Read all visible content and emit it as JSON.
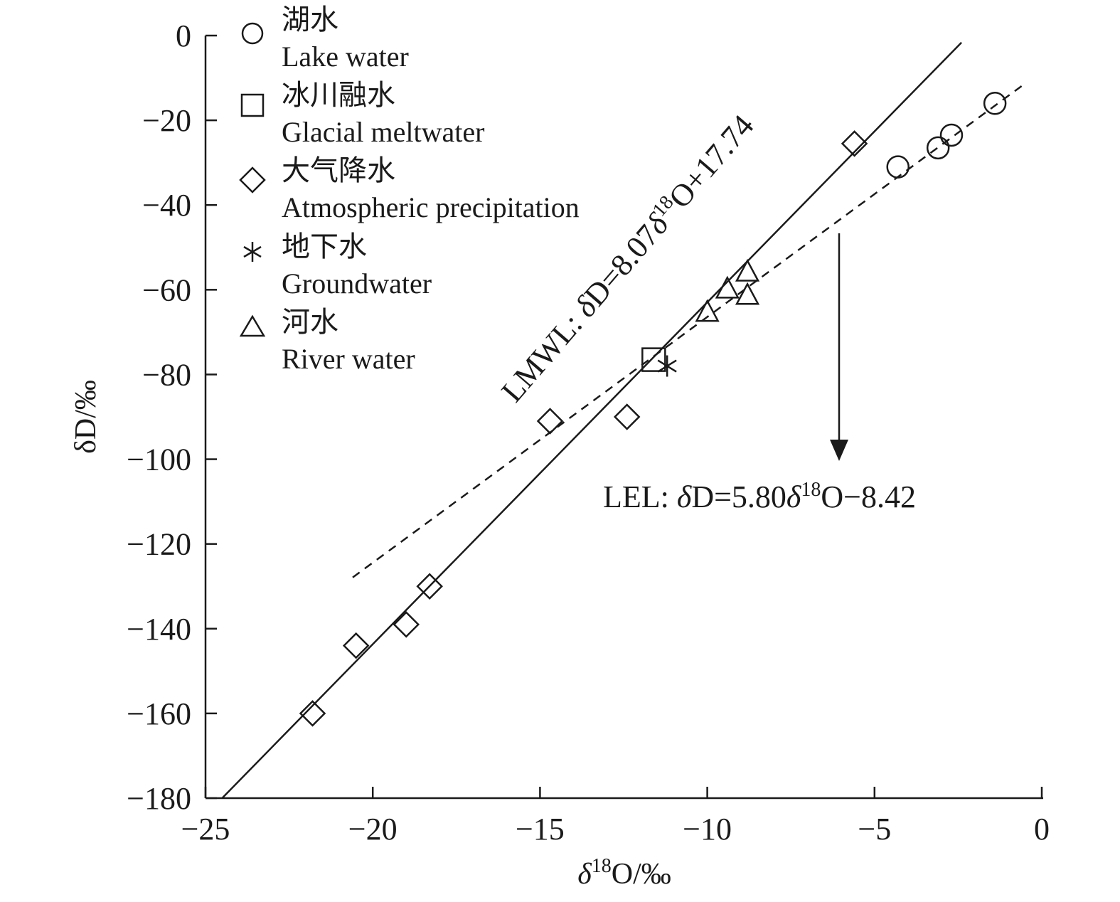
{
  "chart_data": {
    "type": "scatter",
    "xlabel": "δ18O/‰",
    "xlabel_symbol": "δ",
    "xlabel_sup": "18",
    "xlabel_rest": "O/‰",
    "ylabel": "δD/‰",
    "xlim": [
      -25,
      0
    ],
    "ylim": [
      -180,
      0
    ],
    "x_ticks": [
      -25,
      -20,
      -15,
      -10,
      -5,
      0
    ],
    "x_tick_labels": [
      "−25",
      "−20",
      "−15",
      "−10",
      "−5",
      "0"
    ],
    "y_ticks": [
      0,
      -20,
      -40,
      -60,
      -80,
      -100,
      -120,
      -140,
      -160,
      -180
    ],
    "y_tick_labels": [
      "0",
      "−20",
      "−40",
      "−60",
      "−80",
      "−100",
      "−120",
      "−140",
      "−160",
      "−180"
    ],
    "grid": false,
    "legend_position": "top-left",
    "series": [
      {
        "name": "湖水",
        "name_en": "Lake water",
        "marker": "circle",
        "points": [
          [
            -4.3,
            -31
          ],
          [
            -3.1,
            -26.5
          ],
          [
            -2.7,
            -23.5
          ],
          [
            -1.4,
            -16
          ]
        ]
      },
      {
        "name": "冰川融水",
        "name_en": "Glacial meltwater",
        "marker": "square",
        "points": [
          [
            -11.6,
            -76.5
          ]
        ]
      },
      {
        "name": "大气降水",
        "name_en": "Atmospheric precipitation",
        "marker": "diamond",
        "points": [
          [
            -21.8,
            -160
          ],
          [
            -20.5,
            -144
          ],
          [
            -19.0,
            -139
          ],
          [
            -18.3,
            -130
          ],
          [
            -14.7,
            -91
          ],
          [
            -12.4,
            -90
          ],
          [
            -5.6,
            -25.5
          ]
        ]
      },
      {
        "name": "地下水",
        "name_en": "Groundwater",
        "marker": "asterisk",
        "points": [
          [
            -11.2,
            -78
          ]
        ]
      },
      {
        "name": "河水",
        "name_en": "River water",
        "marker": "triangle",
        "points": [
          [
            -10.0,
            -65.5
          ],
          [
            -9.4,
            -60
          ],
          [
            -8.8,
            -61.5
          ],
          [
            -8.8,
            -56
          ]
        ]
      }
    ],
    "lines": [
      {
        "label_prefix": "LMWL: ",
        "label_symbol": "δ",
        "label_mid": "D=8.07",
        "label_symbol2": "δ",
        "label_sup": "18",
        "label_rest": "O+17.74",
        "slope": 8.07,
        "intercept": 17.74,
        "style": "solid",
        "x_range": [
          -24.5,
          -2.4
        ]
      },
      {
        "label_prefix": "LEL: ",
        "label_symbol": "δ",
        "label_mid": "D=5.80",
        "label_symbol2": "δ",
        "label_sup": "18",
        "label_rest": "O−8.42",
        "slope": 5.8,
        "intercept": -8.42,
        "style": "dashed",
        "x_range": [
          -20.6,
          -0.6
        ]
      }
    ]
  }
}
